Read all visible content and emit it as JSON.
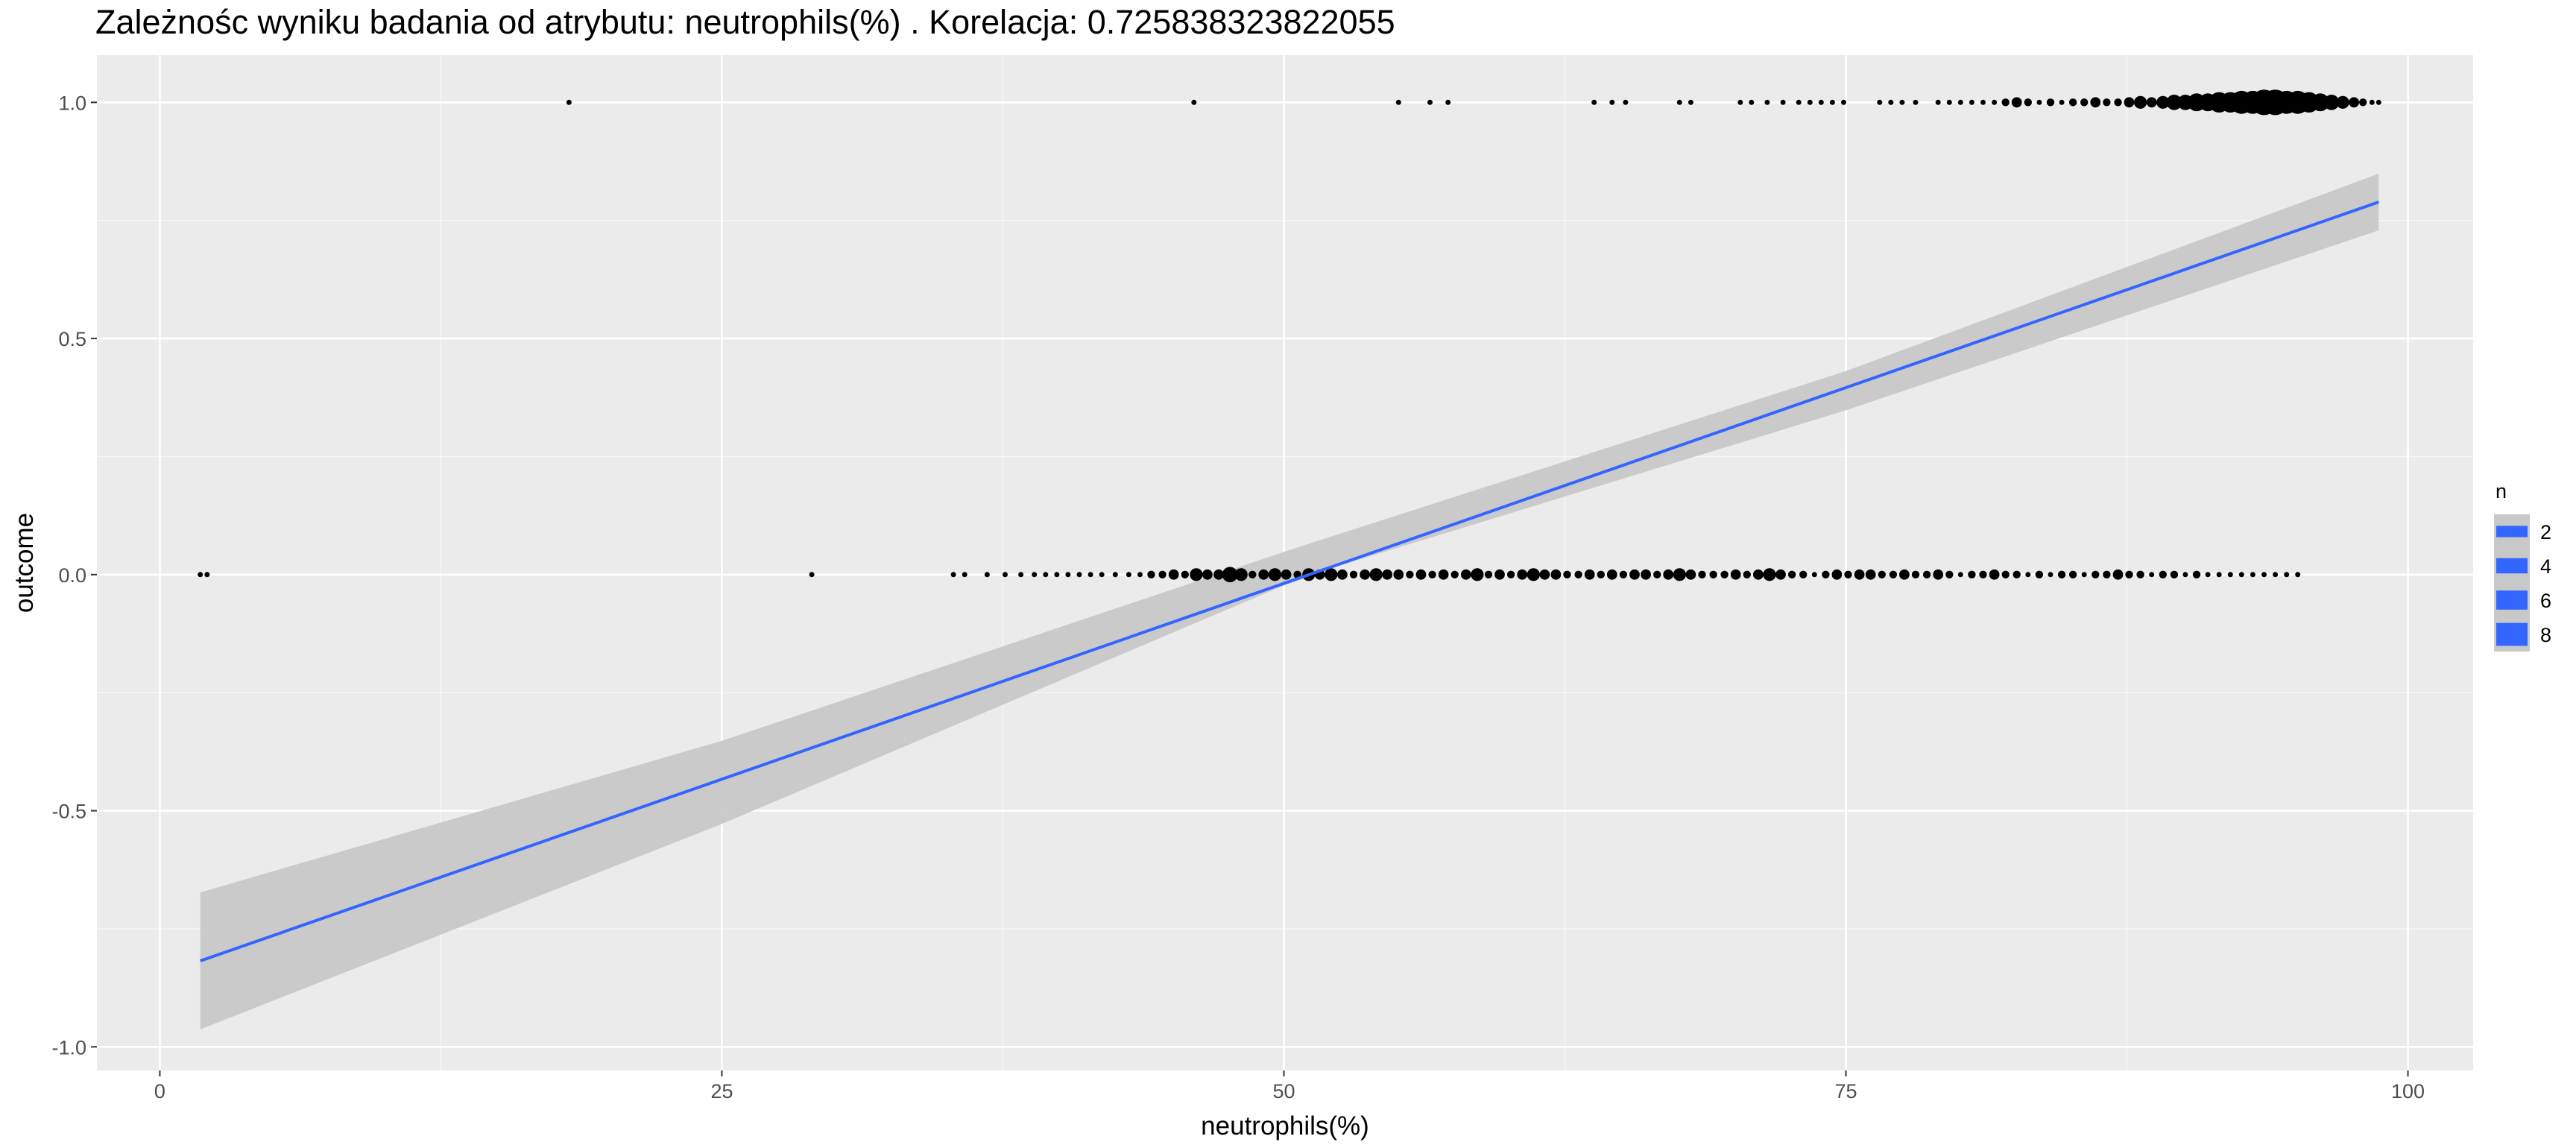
{
  "title": "Zależnośc wyniku badania od atrybutu:  neutrophils(%) . Korelacja:  0.725838323822055",
  "chart_data": {
    "type": "scatter",
    "title": "Zależnośc wyniku badania od atrybutu:  neutrophils(%) . Korelacja:  0.725838323822055",
    "xlabel": "neutrophils(%)",
    "ylabel": "outcome",
    "xlim": [
      -2.8,
      102.9
    ],
    "ylim": [
      -1.05,
      1.1
    ],
    "x_ticks": [
      0,
      25,
      50,
      75,
      100
    ],
    "x_tick_labels": [
      "0",
      "25",
      "50",
      "75",
      "100"
    ],
    "y_ticks": [
      -1.0,
      -0.5,
      0.0,
      0.5,
      1.0
    ],
    "y_tick_labels": [
      "-1.0",
      "-0.5",
      "0.0",
      "0.5",
      "1.0"
    ],
    "grid": true,
    "legend": {
      "title": "n",
      "position": "right",
      "entries": [
        "2",
        "4",
        "6",
        "8"
      ]
    },
    "colors": {
      "panel": "#ebebeb",
      "grid": "#ffffff",
      "points": "#000000",
      "fit_line": "#3366ff",
      "ribbon": "#c8c8c8"
    },
    "points": [
      {
        "x": 1.8,
        "y": 0,
        "n": 1
      },
      {
        "x": 2.1,
        "y": 0,
        "n": 1
      },
      {
        "x": 29.0,
        "y": 0,
        "n": 1
      },
      {
        "x": 35.3,
        "y": 0,
        "n": 1
      },
      {
        "x": 35.8,
        "y": 0,
        "n": 1
      },
      {
        "x": 36.8,
        "y": 0,
        "n": 1
      },
      {
        "x": 37.6,
        "y": 0,
        "n": 1
      },
      {
        "x": 38.3,
        "y": 0,
        "n": 1
      },
      {
        "x": 38.9,
        "y": 0,
        "n": 1
      },
      {
        "x": 39.4,
        "y": 0,
        "n": 1
      },
      {
        "x": 39.9,
        "y": 0,
        "n": 1
      },
      {
        "x": 40.4,
        "y": 0,
        "n": 1
      },
      {
        "x": 40.9,
        "y": 0,
        "n": 1
      },
      {
        "x": 41.4,
        "y": 0,
        "n": 1
      },
      {
        "x": 41.9,
        "y": 0,
        "n": 1
      },
      {
        "x": 42.5,
        "y": 0,
        "n": 1
      },
      {
        "x": 43.1,
        "y": 0,
        "n": 1
      },
      {
        "x": 43.6,
        "y": 0,
        "n": 1
      },
      {
        "x": 44.1,
        "y": 0,
        "n": 2
      },
      {
        "x": 44.6,
        "y": 0,
        "n": 2
      },
      {
        "x": 45.1,
        "y": 0,
        "n": 3
      },
      {
        "x": 45.6,
        "y": 0,
        "n": 2
      },
      {
        "x": 46.1,
        "y": 0,
        "n": 4
      },
      {
        "x": 46.6,
        "y": 0,
        "n": 3
      },
      {
        "x": 47.1,
        "y": 0,
        "n": 3
      },
      {
        "x": 47.6,
        "y": 0,
        "n": 5
      },
      {
        "x": 48.1,
        "y": 0,
        "n": 4
      },
      {
        "x": 48.6,
        "y": 0,
        "n": 2
      },
      {
        "x": 49.1,
        "y": 0,
        "n": 3
      },
      {
        "x": 49.6,
        "y": 0,
        "n": 4
      },
      {
        "x": 50.1,
        "y": 0,
        "n": 3
      },
      {
        "x": 50.6,
        "y": 0,
        "n": 2
      },
      {
        "x": 51.1,
        "y": 0,
        "n": 4
      },
      {
        "x": 51.6,
        "y": 0,
        "n": 3
      },
      {
        "x": 52.1,
        "y": 0,
        "n": 4
      },
      {
        "x": 52.6,
        "y": 0,
        "n": 3
      },
      {
        "x": 53.1,
        "y": 0,
        "n": 2
      },
      {
        "x": 53.6,
        "y": 0,
        "n": 3
      },
      {
        "x": 54.1,
        "y": 0,
        "n": 4
      },
      {
        "x": 54.6,
        "y": 0,
        "n": 3
      },
      {
        "x": 55.1,
        "y": 0,
        "n": 3
      },
      {
        "x": 55.6,
        "y": 0,
        "n": 2
      },
      {
        "x": 56.1,
        "y": 0,
        "n": 3
      },
      {
        "x": 56.6,
        "y": 0,
        "n": 2
      },
      {
        "x": 57.1,
        "y": 0,
        "n": 3
      },
      {
        "x": 57.6,
        "y": 0,
        "n": 2
      },
      {
        "x": 58.1,
        "y": 0,
        "n": 3
      },
      {
        "x": 58.6,
        "y": 0,
        "n": 4
      },
      {
        "x": 59.1,
        "y": 0,
        "n": 2
      },
      {
        "x": 59.6,
        "y": 0,
        "n": 3
      },
      {
        "x": 60.1,
        "y": 0,
        "n": 2
      },
      {
        "x": 60.6,
        "y": 0,
        "n": 3
      },
      {
        "x": 61.1,
        "y": 0,
        "n": 4
      },
      {
        "x": 61.6,
        "y": 0,
        "n": 3
      },
      {
        "x": 62.1,
        "y": 0,
        "n": 3
      },
      {
        "x": 62.6,
        "y": 0,
        "n": 2
      },
      {
        "x": 63.1,
        "y": 0,
        "n": 2
      },
      {
        "x": 63.6,
        "y": 0,
        "n": 3
      },
      {
        "x": 64.1,
        "y": 0,
        "n": 2
      },
      {
        "x": 64.6,
        "y": 0,
        "n": 3
      },
      {
        "x": 65.1,
        "y": 0,
        "n": 2
      },
      {
        "x": 65.6,
        "y": 0,
        "n": 3
      },
      {
        "x": 66.1,
        "y": 0,
        "n": 3
      },
      {
        "x": 66.6,
        "y": 0,
        "n": 2
      },
      {
        "x": 67.1,
        "y": 0,
        "n": 3
      },
      {
        "x": 67.6,
        "y": 0,
        "n": 4
      },
      {
        "x": 68.1,
        "y": 0,
        "n": 3
      },
      {
        "x": 68.6,
        "y": 0,
        "n": 2
      },
      {
        "x": 69.1,
        "y": 0,
        "n": 2
      },
      {
        "x": 69.6,
        "y": 0,
        "n": 2
      },
      {
        "x": 70.1,
        "y": 0,
        "n": 3
      },
      {
        "x": 70.6,
        "y": 0,
        "n": 2
      },
      {
        "x": 71.1,
        "y": 0,
        "n": 3
      },
      {
        "x": 71.6,
        "y": 0,
        "n": 4
      },
      {
        "x": 72.1,
        "y": 0,
        "n": 3
      },
      {
        "x": 72.6,
        "y": 0,
        "n": 2
      },
      {
        "x": 73.1,
        "y": 0,
        "n": 2
      },
      {
        "x": 73.6,
        "y": 0,
        "n": 1
      },
      {
        "x": 74.1,
        "y": 0,
        "n": 2
      },
      {
        "x": 74.6,
        "y": 0,
        "n": 3
      },
      {
        "x": 75.1,
        "y": 0,
        "n": 2
      },
      {
        "x": 75.6,
        "y": 0,
        "n": 3
      },
      {
        "x": 76.1,
        "y": 0,
        "n": 3
      },
      {
        "x": 76.6,
        "y": 0,
        "n": 2
      },
      {
        "x": 77.1,
        "y": 0,
        "n": 2
      },
      {
        "x": 77.6,
        "y": 0,
        "n": 3
      },
      {
        "x": 78.1,
        "y": 0,
        "n": 2
      },
      {
        "x": 78.6,
        "y": 0,
        "n": 2
      },
      {
        "x": 79.1,
        "y": 0,
        "n": 3
      },
      {
        "x": 79.6,
        "y": 0,
        "n": 2
      },
      {
        "x": 80.1,
        "y": 0,
        "n": 1
      },
      {
        "x": 80.6,
        "y": 0,
        "n": 2
      },
      {
        "x": 81.1,
        "y": 0,
        "n": 2
      },
      {
        "x": 81.6,
        "y": 0,
        "n": 3
      },
      {
        "x": 82.1,
        "y": 0,
        "n": 2
      },
      {
        "x": 82.6,
        "y": 0,
        "n": 2
      },
      {
        "x": 83.1,
        "y": 0,
        "n": 1
      },
      {
        "x": 83.6,
        "y": 0,
        "n": 2
      },
      {
        "x": 84.1,
        "y": 0,
        "n": 1
      },
      {
        "x": 84.6,
        "y": 0,
        "n": 2
      },
      {
        "x": 85.1,
        "y": 0,
        "n": 2
      },
      {
        "x": 85.6,
        "y": 0,
        "n": 1
      },
      {
        "x": 86.1,
        "y": 0,
        "n": 2
      },
      {
        "x": 86.6,
        "y": 0,
        "n": 2
      },
      {
        "x": 87.1,
        "y": 0,
        "n": 3
      },
      {
        "x": 87.6,
        "y": 0,
        "n": 2
      },
      {
        "x": 88.1,
        "y": 0,
        "n": 2
      },
      {
        "x": 88.6,
        "y": 0,
        "n": 1
      },
      {
        "x": 89.1,
        "y": 0,
        "n": 2
      },
      {
        "x": 89.6,
        "y": 0,
        "n": 2
      },
      {
        "x": 90.1,
        "y": 0,
        "n": 1
      },
      {
        "x": 90.6,
        "y": 0,
        "n": 2
      },
      {
        "x": 91.1,
        "y": 0,
        "n": 1
      },
      {
        "x": 91.6,
        "y": 0,
        "n": 1
      },
      {
        "x": 92.1,
        "y": 0,
        "n": 1
      },
      {
        "x": 92.6,
        "y": 0,
        "n": 1
      },
      {
        "x": 93.1,
        "y": 0,
        "n": 1
      },
      {
        "x": 93.6,
        "y": 0,
        "n": 1
      },
      {
        "x": 94.1,
        "y": 0,
        "n": 1
      },
      {
        "x": 94.6,
        "y": 0,
        "n": 1
      },
      {
        "x": 95.1,
        "y": 0,
        "n": 1
      },
      {
        "x": 18.2,
        "y": 1,
        "n": 1
      },
      {
        "x": 46.0,
        "y": 1,
        "n": 1
      },
      {
        "x": 55.1,
        "y": 1,
        "n": 1
      },
      {
        "x": 56.5,
        "y": 1,
        "n": 1
      },
      {
        "x": 57.3,
        "y": 1,
        "n": 1
      },
      {
        "x": 63.8,
        "y": 1,
        "n": 1
      },
      {
        "x": 64.6,
        "y": 1,
        "n": 1
      },
      {
        "x": 65.2,
        "y": 1,
        "n": 1
      },
      {
        "x": 67.6,
        "y": 1,
        "n": 1
      },
      {
        "x": 68.1,
        "y": 1,
        "n": 1
      },
      {
        "x": 70.3,
        "y": 1,
        "n": 1
      },
      {
        "x": 70.8,
        "y": 1,
        "n": 1
      },
      {
        "x": 71.5,
        "y": 1,
        "n": 1
      },
      {
        "x": 72.2,
        "y": 1,
        "n": 1
      },
      {
        "x": 72.9,
        "y": 1,
        "n": 1
      },
      {
        "x": 73.4,
        "y": 1,
        "n": 1
      },
      {
        "x": 73.9,
        "y": 1,
        "n": 1
      },
      {
        "x": 74.4,
        "y": 1,
        "n": 1
      },
      {
        "x": 74.9,
        "y": 1,
        "n": 1
      },
      {
        "x": 76.5,
        "y": 1,
        "n": 1
      },
      {
        "x": 77.0,
        "y": 1,
        "n": 1
      },
      {
        "x": 77.5,
        "y": 1,
        "n": 1
      },
      {
        "x": 78.1,
        "y": 1,
        "n": 1
      },
      {
        "x": 79.1,
        "y": 1,
        "n": 1
      },
      {
        "x": 79.6,
        "y": 1,
        "n": 1
      },
      {
        "x": 80.1,
        "y": 1,
        "n": 1
      },
      {
        "x": 80.6,
        "y": 1,
        "n": 1
      },
      {
        "x": 81.1,
        "y": 1,
        "n": 1
      },
      {
        "x": 81.6,
        "y": 1,
        "n": 1
      },
      {
        "x": 82.1,
        "y": 1,
        "n": 2
      },
      {
        "x": 82.6,
        "y": 1,
        "n": 3
      },
      {
        "x": 83.1,
        "y": 1,
        "n": 2
      },
      {
        "x": 83.6,
        "y": 1,
        "n": 1
      },
      {
        "x": 84.1,
        "y": 1,
        "n": 2
      },
      {
        "x": 84.6,
        "y": 1,
        "n": 1
      },
      {
        "x": 85.1,
        "y": 1,
        "n": 2
      },
      {
        "x": 85.6,
        "y": 1,
        "n": 2
      },
      {
        "x": 86.1,
        "y": 1,
        "n": 3
      },
      {
        "x": 86.6,
        "y": 1,
        "n": 2
      },
      {
        "x": 87.1,
        "y": 1,
        "n": 2
      },
      {
        "x": 87.6,
        "y": 1,
        "n": 3
      },
      {
        "x": 88.1,
        "y": 1,
        "n": 4
      },
      {
        "x": 88.6,
        "y": 1,
        "n": 3
      },
      {
        "x": 89.1,
        "y": 1,
        "n": 4
      },
      {
        "x": 89.6,
        "y": 1,
        "n": 5
      },
      {
        "x": 90.1,
        "y": 1,
        "n": 5
      },
      {
        "x": 90.6,
        "y": 1,
        "n": 6
      },
      {
        "x": 91.1,
        "y": 1,
        "n": 6
      },
      {
        "x": 91.6,
        "y": 1,
        "n": 7
      },
      {
        "x": 92.1,
        "y": 1,
        "n": 7
      },
      {
        "x": 92.6,
        "y": 1,
        "n": 8
      },
      {
        "x": 93.1,
        "y": 1,
        "n": 8
      },
      {
        "x": 93.6,
        "y": 1,
        "n": 9
      },
      {
        "x": 94.1,
        "y": 1,
        "n": 9
      },
      {
        "x": 94.6,
        "y": 1,
        "n": 8
      },
      {
        "x": 95.1,
        "y": 1,
        "n": 8
      },
      {
        "x": 95.6,
        "y": 1,
        "n": 7
      },
      {
        "x": 96.1,
        "y": 1,
        "n": 6
      },
      {
        "x": 96.6,
        "y": 1,
        "n": 5
      },
      {
        "x": 97.1,
        "y": 1,
        "n": 4
      },
      {
        "x": 97.6,
        "y": 1,
        "n": 3
      },
      {
        "x": 98.0,
        "y": 1,
        "n": 2
      },
      {
        "x": 98.4,
        "y": 1,
        "n": 1
      },
      {
        "x": 98.7,
        "y": 1,
        "n": 1
      }
    ],
    "fit": {
      "method": "lm",
      "x": [
        1.8,
        98.7
      ],
      "y": [
        -0.818,
        0.789
      ]
    },
    "ribbon": {
      "x": [
        1.8,
        25,
        50,
        52,
        75,
        98.7
      ],
      "lower": [
        -0.963,
        -0.528,
        -0.023,
        0.012,
        0.348,
        0.729
      ],
      "upper": [
        -0.673,
        -0.352,
        0.048,
        0.079,
        0.431,
        0.849
      ]
    }
  }
}
